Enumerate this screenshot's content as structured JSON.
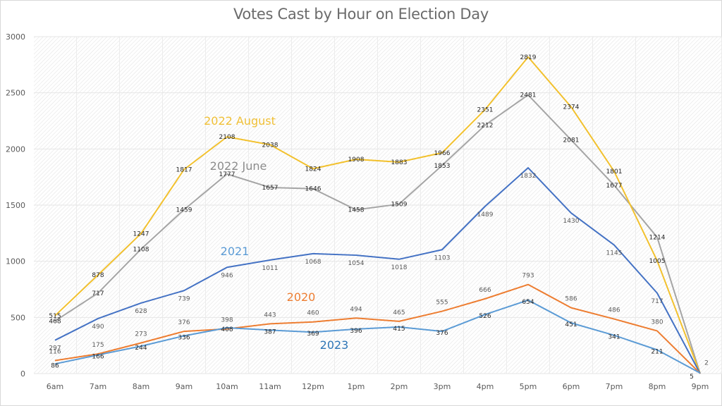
{
  "chart_data": {
    "type": "line",
    "title": "Votes Cast by Hour on Election Day",
    "xlabel": "",
    "ylabel": "",
    "ylim": [
      0,
      3000
    ],
    "yticks": [
      0,
      500,
      1000,
      1500,
      2000,
      2500,
      3000
    ],
    "grid": true,
    "legend": "inline labels",
    "categories": [
      "6am",
      "7am",
      "8am",
      "9am",
      "10am",
      "11am",
      "12pm",
      "1pm",
      "2pm",
      "3pm",
      "4pm",
      "5pm",
      "6pm",
      "7pm",
      "8pm",
      "9pm"
    ],
    "series": [
      {
        "name": "2022 August",
        "color": "#f2c12e",
        "label_color": "#f0c037",
        "values": [
          515,
          878,
          1247,
          1817,
          2108,
          2038,
          1824,
          1908,
          1883,
          1966,
          2351,
          2819,
          2374,
          1801,
          1005,
          0
        ]
      },
      {
        "name": "2022 June",
        "color": "#a5a5a5",
        "label_color": "#8c8c8c",
        "values": [
          468,
          717,
          1108,
          1459,
          1777,
          1657,
          1646,
          1458,
          1509,
          1853,
          2212,
          2481,
          2081,
          1677,
          1214,
          0
        ]
      },
      {
        "name": "2021",
        "color": "#4472c4",
        "label_color": "#5b9bd5",
        "values": [
          297,
          490,
          628,
          739,
          946,
          1011,
          1068,
          1054,
          1018,
          1103,
          1489,
          1832,
          1430,
          1145,
          717,
          0
        ]
      },
      {
        "name": "2020",
        "color": "#ed7d31",
        "label_color": "#ed7d31",
        "values": [
          116,
          175,
          273,
          376,
          398,
          443,
          460,
          494,
          465,
          555,
          666,
          793,
          586,
          486,
          380,
          2
        ]
      },
      {
        "name": "2023",
        "color": "#5b9bd5",
        "label_color": "#2e75b6",
        "values": [
          86,
          166,
          244,
          336,
          408,
          387,
          369,
          396,
          415,
          376,
          526,
          654,
          451,
          341,
          211,
          5
        ]
      }
    ]
  }
}
